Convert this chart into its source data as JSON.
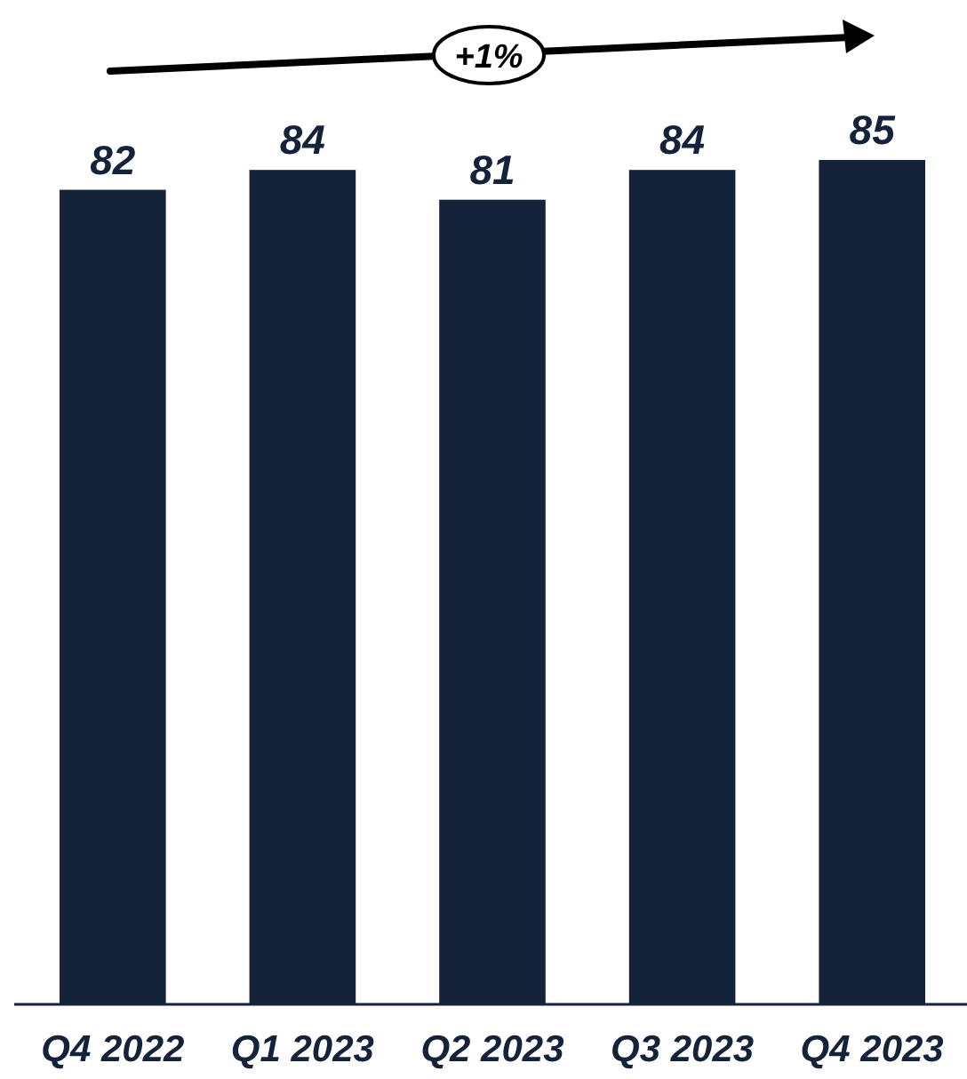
{
  "chart_data": {
    "type": "bar",
    "categories": [
      "Q4 2022",
      "Q1 2023",
      "Q2 2023",
      "Q3 2023",
      "Q4 2023"
    ],
    "values": [
      82,
      84,
      81,
      84,
      85
    ],
    "color": "#14223a",
    "data_labels": true,
    "annotations": [
      "+1%"
    ]
  }
}
